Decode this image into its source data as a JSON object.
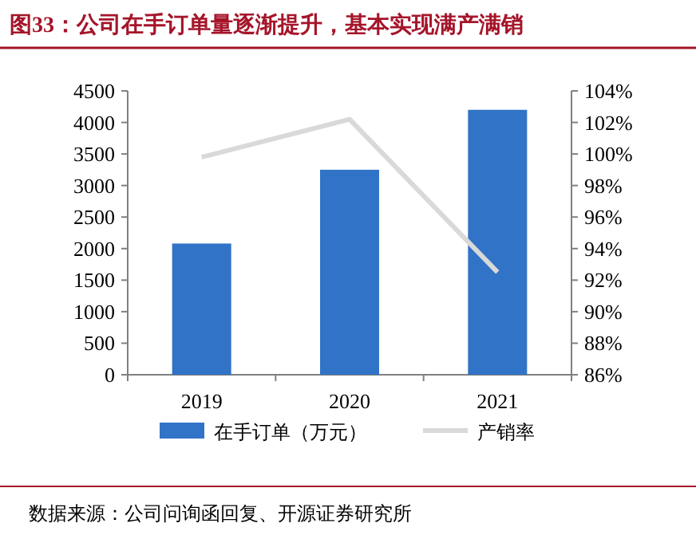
{
  "chart_data": {
    "type": "bar",
    "title": "图33：公司在手订单量逐渐提升，基本实现满产满销",
    "categories": [
      "2019",
      "2020",
      "2021"
    ],
    "series": [
      {
        "name": "在手订单（万元）",
        "color": "#3173c6",
        "values": [
          2080,
          3250,
          4200
        ]
      },
      {
        "name": "产销率",
        "type": "line",
        "axis": "y2",
        "color": "#d9d9d9",
        "values": [
          99.8,
          102.2,
          92.5
        ]
      }
    ],
    "ylim": [
      0,
      4500
    ],
    "yticks": [
      0,
      500,
      1000,
      1500,
      2000,
      2500,
      3000,
      3500,
      4000,
      4500
    ],
    "y2lim": [
      86,
      104
    ],
    "y2ticks": [
      {
        "value": 86,
        "label": "86%"
      },
      {
        "value": 88,
        "label": "88%"
      },
      {
        "value": 90,
        "label": "90%"
      },
      {
        "value": 92,
        "label": "92%"
      },
      {
        "value": 94,
        "label": "94%"
      },
      {
        "value": 96,
        "label": "96%"
      },
      {
        "value": 98,
        "label": "98%"
      },
      {
        "value": 100,
        "label": "100%"
      },
      {
        "value": 102,
        "label": "102%"
      },
      {
        "value": 104,
        "label": "104%"
      }
    ],
    "grid": false,
    "legend": "bottom",
    "annotations": [
      "数据来源：公司问询函回复、开源证券研究所"
    ]
  }
}
